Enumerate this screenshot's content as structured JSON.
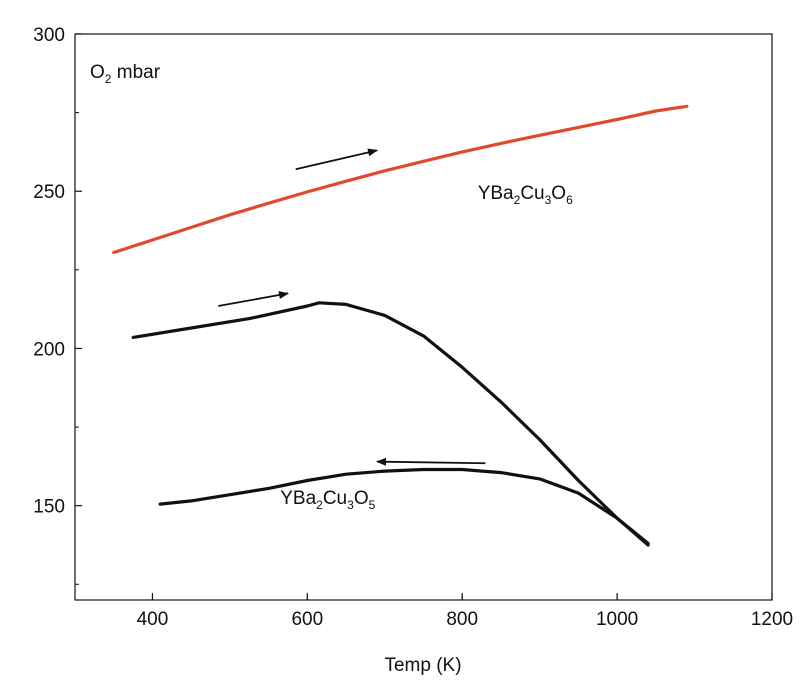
{
  "chart_data": {
    "type": "line",
    "title": "",
    "xlabel": "Temp (K)",
    "ylabel": "",
    "xlim": [
      300,
      1200
    ],
    "ylim": [
      120,
      300
    ],
    "x_ticks": [
      400,
      600,
      800,
      1000,
      1200
    ],
    "y_ticks": [
      150,
      200,
      250,
      300
    ],
    "x_tick_labels": [
      "400",
      "600",
      "800",
      "1000",
      "1200"
    ],
    "y_tick_labels": [
      "150",
      "200",
      "250",
      "300"
    ],
    "grid": false,
    "legend": "none",
    "panel_label": {
      "base": "O",
      "sub": "2",
      "rest": " mbar"
    },
    "series": [
      {
        "name": "YBa2Cu3O6",
        "color": "#e04a2c",
        "x": [
          350,
          400,
          450,
          500,
          550,
          600,
          650,
          700,
          750,
          800,
          850,
          900,
          950,
          1000,
          1050,
          1090
        ],
        "y": [
          230.5,
          234.5,
          238.5,
          242.5,
          246.2,
          249.8,
          253.2,
          256.5,
          259.5,
          262.5,
          265.2,
          267.8,
          270.3,
          272.8,
          275.5,
          277
        ]
      },
      {
        "name": "YBa2Cu3O5 (heating)",
        "color": "#111111",
        "x": [
          375,
          450,
          525,
          600,
          615,
          650,
          700,
          750,
          800,
          850,
          900,
          950,
          1000,
          1040
        ],
        "y": [
          203.5,
          206.5,
          209.5,
          213.5,
          214.5,
          214,
          210.5,
          204,
          194,
          183,
          171,
          158,
          146,
          138
        ]
      },
      {
        "name": "YBa2Cu3O5 (cooling)",
        "color": "#111111",
        "x": [
          1040,
          1000,
          950,
          900,
          850,
          800,
          750,
          700,
          650,
          600,
          550,
          500,
          450,
          410
        ],
        "y": [
          137.5,
          146,
          154,
          158.5,
          160.5,
          161.5,
          161.5,
          161,
          160,
          158,
          155.5,
          153.5,
          151.5,
          150.5
        ]
      }
    ],
    "annotations": [
      {
        "kind": "label",
        "base": "YBa",
        "s1": "2",
        "mid": "Cu",
        "s2": "3",
        "tail": "O",
        "s3": "6",
        "x": 820,
        "y": 247.5
      },
      {
        "kind": "label",
        "base": "YBa",
        "s1": "2",
        "mid": "Cu",
        "s2": "3",
        "tail": "O",
        "s3": "5",
        "x": 565,
        "y": 150.5
      }
    ],
    "arrows": [
      {
        "from": [
          585,
          257
        ],
        "to": [
          690,
          263
        ]
      },
      {
        "from": [
          485,
          213.5
        ],
        "to": [
          575,
          217.5
        ]
      },
      {
        "from": [
          830,
          163.5
        ],
        "to": [
          690,
          164
        ]
      }
    ]
  }
}
